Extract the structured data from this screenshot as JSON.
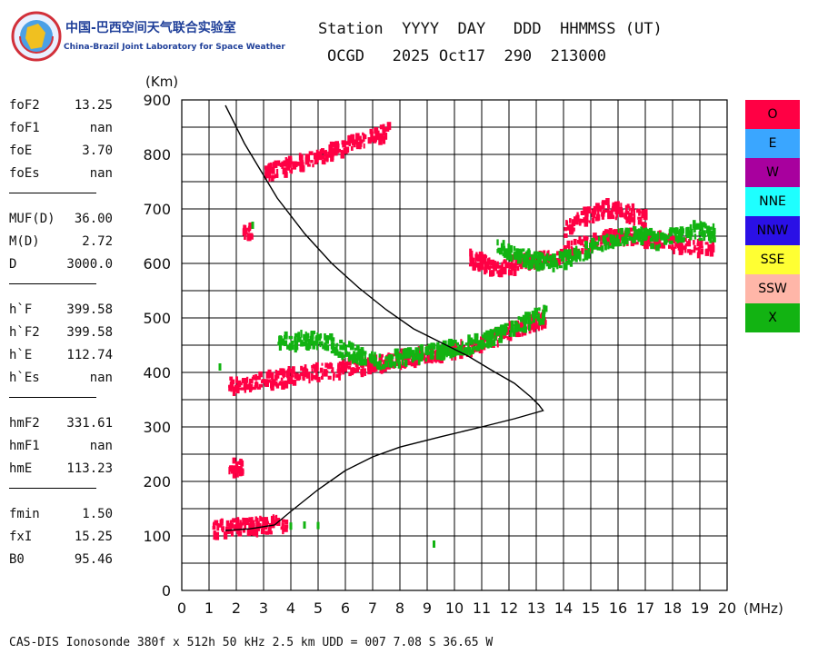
{
  "logo": {
    "name_cn": "中国-巴西空间天气联合实验室",
    "name_en": "China-Brazil Joint Laboratory for Space Weather"
  },
  "header": {
    "line1": "Station  YYYY  DAY   DDD  HHMMSS (UT)",
    "line2": "OCGD   2025 Oct17  290  213000"
  },
  "parameters": [
    [
      {
        "label": "foF2",
        "value": "13.25"
      },
      {
        "label": "foF1",
        "value": "nan"
      },
      {
        "label": "foE",
        "value": "3.70"
      },
      {
        "label": "foEs",
        "value": "nan"
      }
    ],
    [
      {
        "label": "MUF(D)",
        "value": "36.00"
      },
      {
        "label": "M(D)",
        "value": "2.72"
      },
      {
        "label": "D",
        "value": "3000.0"
      }
    ],
    [
      {
        "label": "h`F",
        "value": "399.58"
      },
      {
        "label": "h`F2",
        "value": "399.58"
      },
      {
        "label": "h`E",
        "value": "112.74"
      },
      {
        "label": "h`Es",
        "value": "nan"
      }
    ],
    [
      {
        "label": "hmF2",
        "value": "331.61"
      },
      {
        "label": "hmF1",
        "value": "nan"
      },
      {
        "label": "hmE",
        "value": "113.23"
      }
    ],
    [
      {
        "label": "fmin",
        "value": "1.50"
      },
      {
        "label": "fxI",
        "value": "15.25"
      },
      {
        "label": "B0",
        "value": "95.46"
      }
    ]
  ],
  "legend": [
    {
      "label": "O",
      "color": "#ff0044"
    },
    {
      "label": "E",
      "color": "#3aa6ff"
    },
    {
      "label": "W",
      "color": "#a8009e"
    },
    {
      "label": "NNE",
      "color": "#1effff"
    },
    {
      "label": "NNW",
      "color": "#2a10e6"
    },
    {
      "label": "SSE",
      "color": "#ffff33"
    },
    {
      "label": "SSW",
      "color": "#ffb6a8"
    },
    {
      "label": "X",
      "color": "#12b312"
    }
  ],
  "footer": "CAS-DIS Ionosonde 380f x 512h 50 kHz 2.5 km UDD = 007 7.08 S 36.65 W",
  "chart_data": {
    "type": "scatter",
    "ylabel": "(Km)",
    "xlabel": "(MHz)",
    "xlim": [
      0,
      20
    ],
    "ylim": [
      0,
      900
    ],
    "xticks": [
      "0",
      "1",
      "2",
      "3",
      "4",
      "5",
      "6",
      "7",
      "8",
      "9",
      "10",
      "11",
      "12",
      "13",
      "14",
      "15",
      "16",
      "17",
      "18",
      "19",
      "20"
    ],
    "yticks": [
      "0",
      "100",
      "200",
      "300",
      "400",
      "500",
      "600",
      "700",
      "800",
      "900"
    ],
    "grid": true,
    "series": [
      {
        "name": "O",
        "color": "#ff0044",
        "traces": [
          {
            "x": [
              1.7,
              3.0,
              5.0,
              7.0,
              9.0,
              10.5,
              11.5,
              12.5,
              13.3
            ],
            "y": [
              375,
              385,
              400,
              415,
              432,
              445,
              465,
              485,
              500
            ]
          },
          {
            "x": [
              1.1,
              2.0,
              3.0,
              3.8
            ],
            "y": [
              112,
              117,
              118,
              120
            ]
          },
          {
            "x": [
              3.0,
              4.0,
              5.0,
              6.0,
              7.0,
              7.6
            ],
            "y": [
              765,
              780,
              795,
              815,
              835,
              840
            ]
          },
          {
            "x": [
              10.5,
              11.5,
              12.5,
              13.5,
              14.5,
              15.5,
              16.5,
              17.5,
              18.5,
              19.5
            ],
            "y": [
              610,
              590,
              600,
              610,
              630,
              645,
              650,
              640,
              630,
              625
            ]
          },
          {
            "x": [
              14.0,
              14.5,
              15.0,
              15.5,
              16.0,
              16.5,
              17.0
            ],
            "y": [
              660,
              680,
              690,
              700,
              695,
              690,
              680
            ]
          },
          {
            "x": [
              1.7,
              2.2
            ],
            "y": [
              225,
              225
            ]
          },
          {
            "x": [
              2.2,
              2.5
            ],
            "y": [
              650,
              660
            ]
          }
        ]
      },
      {
        "name": "X",
        "color": "#12b312",
        "traces": [
          {
            "x": [
              3.5,
              5.0,
              7.0,
              9.0,
              10.5,
              12.0,
              13.3
            ],
            "y": [
              455,
              460,
              420,
              435,
              450,
              478,
              510
            ]
          },
          {
            "x": [
              4.0,
              4.5,
              5.0
            ],
            "y": [
              118,
              120,
              119
            ]
          },
          {
            "x": [
              11.5,
              12.5,
              13.5,
              14.5,
              15.5,
              16.5,
              17.5,
              18.5,
              19.5
            ],
            "y": [
              630,
              610,
              600,
              615,
              640,
              655,
              640,
              660,
              655
            ]
          },
          {
            "x": [
              1.4,
              2.6,
              9.25
            ],
            "y": [
              410,
              670,
              85
            ]
          }
        ]
      }
    ],
    "profile": {
      "x": [
        1.6,
        1.9,
        2.3,
        2.9,
        3.5,
        4.5,
        5.5,
        6.5,
        7.5,
        8.5,
        9.5,
        10.5,
        11.5,
        12.2,
        12.8,
        13.1,
        13.25,
        12.2,
        11.0,
        9.5,
        8.0,
        7.0,
        6.0,
        5.0,
        4.0,
        3.4,
        2.5,
        1.6
      ],
      "y": [
        890,
        860,
        820,
        770,
        720,
        655,
        600,
        555,
        515,
        480,
        455,
        430,
        400,
        380,
        355,
        340,
        330,
        315,
        300,
        282,
        263,
        245,
        220,
        185,
        145,
        120,
        113,
        110
      ]
    }
  }
}
